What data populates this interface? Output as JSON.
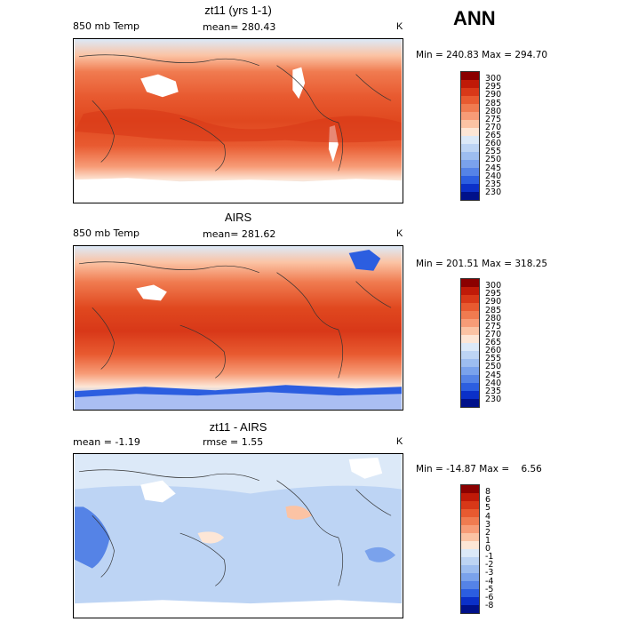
{
  "season": "ANN",
  "panels": [
    {
      "title": "zt11 (yrs 1-1)",
      "left_label": "850 mb Temp",
      "center_label": "mean= 280.43",
      "unit": "K",
      "minmax": "Min = 240.83 Max = 294.70",
      "colorbar": {
        "labels": [
          "300",
          "295",
          "290",
          "285",
          "280",
          "275",
          "270",
          "265",
          "260",
          "255",
          "250",
          "245",
          "240",
          "235",
          "230"
        ],
        "colors": [
          "#8b0000",
          "#c01a08",
          "#d83818",
          "#e85a30",
          "#f07b50",
          "#f79c77",
          "#fbc3a4",
          "#fde6d6",
          "#dce9f8",
          "#bdd4f4",
          "#9dbdf0",
          "#7aa2ec",
          "#5583e6",
          "#2c5ee0",
          "#0b30c8",
          "#00118a"
        ]
      }
    },
    {
      "title": "AIRS",
      "left_label": "850 mb Temp",
      "center_label": "mean= 281.62",
      "unit": "K",
      "minmax": "Min = 201.51 Max = 318.25",
      "colorbar": {
        "labels": [
          "300",
          "295",
          "290",
          "285",
          "280",
          "275",
          "270",
          "265",
          "260",
          "255",
          "250",
          "245",
          "240",
          "235",
          "230"
        ],
        "colors": [
          "#8b0000",
          "#c01a08",
          "#d83818",
          "#e85a30",
          "#f07b50",
          "#f79c77",
          "#fbc3a4",
          "#fde6d6",
          "#dce9f8",
          "#bdd4f4",
          "#9dbdf0",
          "#7aa2ec",
          "#5583e6",
          "#2c5ee0",
          "#0b30c8",
          "#00118a"
        ]
      }
    },
    {
      "title": "zt11 - AIRS",
      "left_label": "mean =   -1.19",
      "center_label": "rmse =    1.55",
      "unit": "K",
      "minmax": "Min = -14.87 Max =    6.56",
      "colorbar": {
        "labels": [
          "8",
          "6",
          "5",
          "4",
          "3",
          "2",
          "1",
          "0",
          "-1",
          "-2",
          "-3",
          "-4",
          "-5",
          "-6",
          "-8"
        ],
        "colors": [
          "#8b0000",
          "#c01a08",
          "#d83818",
          "#e85a30",
          "#f07b50",
          "#f79c77",
          "#fbc3a4",
          "#fde6d6",
          "#dce9f8",
          "#bdd4f4",
          "#9dbdf0",
          "#7aa2ec",
          "#5583e6",
          "#2c5ee0",
          "#0b30c8",
          "#00118a"
        ]
      }
    }
  ]
}
